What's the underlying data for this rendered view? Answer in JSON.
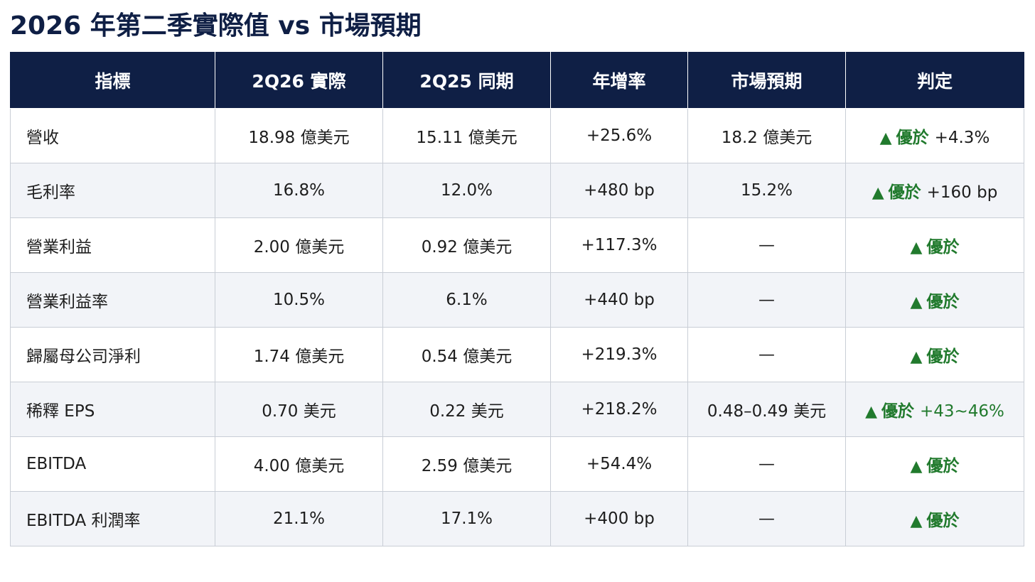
{
  "title": "2026 年第二季實際值 vs 市場預期",
  "table": {
    "columns": [
      "指標",
      "2Q26 實際",
      "2Q25 同期",
      "年增率",
      "市場預期",
      "判定"
    ],
    "rows": [
      {
        "metric": "營收",
        "actual": "18.98 億美元",
        "prior": "15.11 億美元",
        "yoy": "+25.6%",
        "expected": "18.2 億美元",
        "verdict": {
          "icon": "up-triangle-icon",
          "word": "優於",
          "delta": "+4.3%",
          "delta_color": "dark"
        }
      },
      {
        "metric": "毛利率",
        "actual": "16.8%",
        "prior": "12.0%",
        "yoy": "+480 bp",
        "expected": "15.2%",
        "verdict": {
          "icon": "up-triangle-icon",
          "word": "優於",
          "delta": "+160 bp",
          "delta_color": "dark"
        }
      },
      {
        "metric": "營業利益",
        "actual": "2.00 億美元",
        "prior": "0.92 億美元",
        "yoy": "+117.3%",
        "expected": "—",
        "verdict": {
          "icon": "up-triangle-icon",
          "word": "優於",
          "delta": ""
        }
      },
      {
        "metric": "營業利益率",
        "actual": "10.5%",
        "prior": "6.1%",
        "yoy": "+440 bp",
        "expected": "—",
        "verdict": {
          "icon": "up-triangle-icon",
          "word": "優於",
          "delta": ""
        }
      },
      {
        "metric": "歸屬母公司淨利",
        "actual": "1.74 億美元",
        "prior": "0.54 億美元",
        "yoy": "+219.3%",
        "expected": "—",
        "verdict": {
          "icon": "up-triangle-icon",
          "word": "優於",
          "delta": ""
        }
      },
      {
        "metric": "稀釋 EPS",
        "actual": "0.70 美元",
        "prior": "0.22 美元",
        "yoy": "+218.2%",
        "expected": "0.48–0.49 美元",
        "verdict": {
          "icon": "up-triangle-icon",
          "word": "優於",
          "delta": "+43~46%",
          "delta_color": "green"
        }
      },
      {
        "metric": "EBITDA",
        "actual": "4.00 億美元",
        "prior": "2.59 億美元",
        "yoy": "+54.4%",
        "expected": "—",
        "verdict": {
          "icon": "up-triangle-icon",
          "word": "優於",
          "delta": ""
        }
      },
      {
        "metric": "EBITDA 利潤率",
        "actual": "21.1%",
        "prior": "17.1%",
        "yoy": "+400 bp",
        "expected": "—",
        "verdict": {
          "icon": "up-triangle-icon",
          "word": "優於",
          "delta": ""
        }
      }
    ]
  },
  "colors": {
    "header_bg": "#0f1f45",
    "verdict_green": "#217a2d",
    "alt_row": "#f2f4f8"
  }
}
